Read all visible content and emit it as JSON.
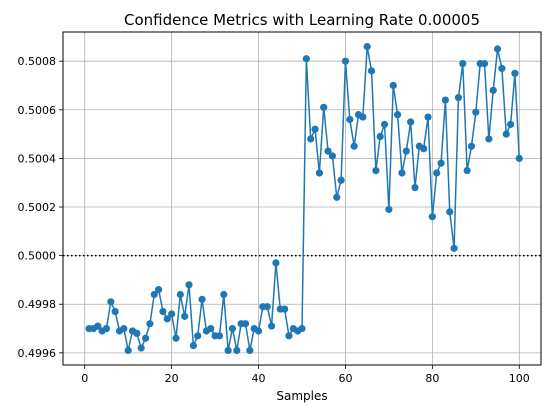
{
  "chart_data": {
    "type": "line",
    "title": "Confidence Metrics with Learning Rate 0.00005",
    "xlabel": "Samples",
    "ylabel": "",
    "xlim": [
      -5,
      105
    ],
    "ylim": [
      0.49955,
      0.50092
    ],
    "xticks": [
      0,
      20,
      40,
      60,
      80,
      100
    ],
    "xtick_labels": [
      "0",
      "20",
      "40",
      "60",
      "80",
      "100"
    ],
    "yticks": [
      0.4996,
      0.4998,
      0.5,
      0.5002,
      0.5004,
      0.5006,
      0.5008
    ],
    "ytick_labels": [
      "0.4996",
      "0.4998",
      "0.5000",
      "0.5002",
      "0.5004",
      "0.5006",
      "0.5008"
    ],
    "grid": true,
    "reference_line": {
      "y": 0.5,
      "style": "dotted",
      "color": "#000000"
    },
    "series": [
      {
        "color": "#1f77b4",
        "marker": "circle",
        "x": [
          1,
          2,
          3,
          4,
          5,
          6,
          7,
          8,
          9,
          10,
          11,
          12,
          13,
          14,
          15,
          16,
          17,
          18,
          19,
          20,
          21,
          22,
          23,
          24,
          25,
          26,
          27,
          28,
          29,
          30,
          31,
          32,
          33,
          34,
          35,
          36,
          37,
          38,
          39,
          40,
          41,
          42,
          43,
          44,
          45,
          46,
          47,
          48,
          49,
          50,
          51,
          52,
          53,
          54,
          55,
          56,
          57,
          58,
          59,
          60,
          61,
          62,
          63,
          64,
          65,
          66,
          67,
          68,
          69,
          70,
          71,
          72,
          73,
          74,
          75,
          76,
          77,
          78,
          79,
          80,
          81,
          82,
          83,
          84,
          85,
          86,
          87,
          88,
          89,
          90,
          91,
          92,
          93,
          94,
          95,
          96,
          97,
          98,
          99,
          100
        ],
        "y": [
          0.4997,
          0.4997,
          0.49971,
          0.49969,
          0.4997,
          0.49981,
          0.49977,
          0.49969,
          0.4997,
          0.49961,
          0.49969,
          0.49968,
          0.49962,
          0.49966,
          0.49972,
          0.49984,
          0.49986,
          0.49977,
          0.49974,
          0.49976,
          0.49966,
          0.49984,
          0.49975,
          0.49988,
          0.49963,
          0.49967,
          0.49982,
          0.49969,
          0.4997,
          0.49967,
          0.49967,
          0.49984,
          0.49961,
          0.4997,
          0.49961,
          0.49972,
          0.49972,
          0.49961,
          0.4997,
          0.49969,
          0.49979,
          0.49979,
          0.49971,
          0.49997,
          0.49978,
          0.49978,
          0.49967,
          0.4997,
          0.49969,
          0.4997,
          0.50081,
          0.50048,
          0.50052,
          0.50034,
          0.50061,
          0.50043,
          0.50041,
          0.50024,
          0.50031,
          0.5008,
          0.50056,
          0.50045,
          0.50058,
          0.50057,
          0.50086,
          0.50076,
          0.50035,
          0.50049,
          0.50054,
          0.50019,
          0.5007,
          0.50058,
          0.50034,
          0.50043,
          0.50055,
          0.50028,
          0.50045,
          0.50044,
          0.50057,
          0.50016,
          0.50034,
          0.50038,
          0.50064,
          0.50018,
          0.50003,
          0.50065,
          0.50079,
          0.50035,
          0.50045,
          0.50059,
          0.50079,
          0.50079,
          0.50048,
          0.50068,
          0.50085,
          0.50077,
          0.5005,
          0.50054,
          0.50075,
          0.5004
        ]
      }
    ]
  }
}
